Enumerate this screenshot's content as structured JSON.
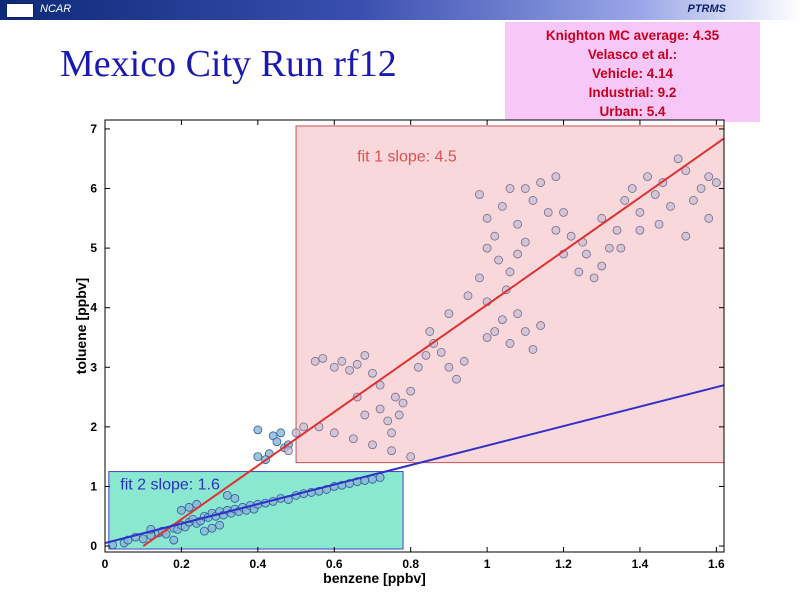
{
  "header": {
    "left": "NCAR",
    "right": "PTRMS"
  },
  "slide_title": "Mexico City Run rf12",
  "info_box": {
    "lines": [
      "Knighton MC average: 4.35",
      "Velasco et al.:",
      "Vehicle: 4.14",
      "Industrial: 9.2",
      "Urban: 5.4"
    ]
  },
  "chart_data": {
    "type": "scatter",
    "xlabel": "benzene [ppbv]",
    "ylabel": "toluene [ppbv]",
    "xlim": [
      0,
      1.62
    ],
    "ylim": [
      -0.1,
      7.15
    ],
    "x_ticks": [
      0,
      0.2,
      0.4,
      0.6,
      0.8,
      1,
      1.2,
      1.4,
      1.6
    ],
    "x_tick_labels": [
      "0",
      "0.2",
      "0.4",
      "0.6",
      "0.8",
      "1",
      "1.2",
      "1.4",
      "1.6"
    ],
    "y_ticks": [
      0,
      1,
      2,
      3,
      4,
      5,
      6,
      7
    ],
    "y_tick_labels": [
      "0",
      "1",
      "2",
      "3",
      "4",
      "5",
      "6",
      "7"
    ],
    "grid": false,
    "regions": [
      {
        "label": "fit 1 slope: 4.5",
        "x": [
          0.5,
          1.62
        ],
        "y": [
          1.4,
          7.05
        ],
        "color": "#f9d4d8",
        "edge": "#c04040",
        "text_color": "#e05050"
      },
      {
        "label": "fit 2 slope: 1.6",
        "x": [
          0.01,
          0.78
        ],
        "y": [
          -0.05,
          1.25
        ],
        "color": "#7fe6cc",
        "edge": "#3030c0",
        "text_color": "#3030c0"
      }
    ],
    "fit_lines": [
      {
        "name": "fit 1",
        "slope": 4.5,
        "x": [
          0.1,
          1.62
        ],
        "y": [
          0.0,
          6.84
        ],
        "color": "#e03030"
      },
      {
        "name": "fit 2",
        "slope": 1.6,
        "x": [
          0.0,
          1.62
        ],
        "y": [
          0.05,
          2.7
        ],
        "color": "#3030c8"
      }
    ],
    "point_groups": [
      {
        "name": "low cluster",
        "color": "#8ab4d8",
        "edge": "#2a5c94",
        "points": [
          [
            0.02,
            0.02
          ],
          [
            0.05,
            0.05
          ],
          [
            0.06,
            0.1
          ],
          [
            0.08,
            0.15
          ],
          [
            0.1,
            0.12
          ],
          [
            0.12,
            0.18
          ],
          [
            0.14,
            0.22
          ],
          [
            0.15,
            0.25
          ],
          [
            0.16,
            0.2
          ],
          [
            0.18,
            0.3
          ],
          [
            0.19,
            0.28
          ],
          [
            0.2,
            0.35
          ],
          [
            0.21,
            0.32
          ],
          [
            0.22,
            0.4
          ],
          [
            0.23,
            0.45
          ],
          [
            0.24,
            0.38
          ],
          [
            0.25,
            0.42
          ],
          [
            0.26,
            0.5
          ],
          [
            0.27,
            0.48
          ],
          [
            0.28,
            0.55
          ],
          [
            0.29,
            0.5
          ],
          [
            0.3,
            0.58
          ],
          [
            0.31,
            0.52
          ],
          [
            0.32,
            0.6
          ],
          [
            0.33,
            0.55
          ],
          [
            0.34,
            0.62
          ],
          [
            0.35,
            0.58
          ],
          [
            0.36,
            0.65
          ],
          [
            0.37,
            0.6
          ],
          [
            0.38,
            0.68
          ],
          [
            0.39,
            0.62
          ],
          [
            0.4,
            0.7
          ],
          [
            0.42,
            0.72
          ],
          [
            0.44,
            0.75
          ],
          [
            0.46,
            0.8
          ],
          [
            0.48,
            0.78
          ],
          [
            0.5,
            0.85
          ],
          [
            0.52,
            0.88
          ],
          [
            0.54,
            0.9
          ],
          [
            0.56,
            0.92
          ],
          [
            0.58,
            0.95
          ],
          [
            0.6,
            1.0
          ],
          [
            0.62,
            1.02
          ],
          [
            0.64,
            1.05
          ],
          [
            0.66,
            1.08
          ],
          [
            0.68,
            1.1
          ],
          [
            0.7,
            1.12
          ],
          [
            0.72,
            1.15
          ],
          [
            0.2,
            0.6
          ],
          [
            0.22,
            0.65
          ],
          [
            0.24,
            0.7
          ],
          [
            0.26,
            0.25
          ],
          [
            0.28,
            0.3
          ],
          [
            0.3,
            0.35
          ],
          [
            0.32,
            0.85
          ],
          [
            0.34,
            0.8
          ],
          [
            0.18,
            0.1
          ],
          [
            0.12,
            0.28
          ],
          [
            0.4,
            1.95
          ],
          [
            0.44,
            1.85
          ],
          [
            0.43,
            1.55
          ],
          [
            0.4,
            1.5
          ],
          [
            0.42,
            1.45
          ],
          [
            0.46,
            1.9
          ],
          [
            0.47,
            1.65
          ],
          [
            0.48,
            1.7
          ],
          [
            0.45,
            1.75
          ]
        ]
      },
      {
        "name": "high cluster",
        "color": "#c8c0d4",
        "edge": "#7a6a8c",
        "points": [
          [
            0.48,
            1.6
          ],
          [
            0.5,
            1.9
          ],
          [
            0.52,
            2.0
          ],
          [
            0.55,
            3.1
          ],
          [
            0.57,
            3.15
          ],
          [
            0.6,
            3.0
          ],
          [
            0.62,
            3.1
          ],
          [
            0.64,
            2.95
          ],
          [
            0.66,
            3.05
          ],
          [
            0.68,
            3.2
          ],
          [
            0.7,
            2.9
          ],
          [
            0.72,
            2.3
          ],
          [
            0.74,
            2.1
          ],
          [
            0.75,
            1.9
          ],
          [
            0.77,
            2.2
          ],
          [
            0.78,
            2.4
          ],
          [
            0.8,
            2.6
          ],
          [
            0.82,
            3.0
          ],
          [
            0.84,
            3.2
          ],
          [
            0.86,
            3.4
          ],
          [
            0.88,
            3.25
          ],
          [
            0.9,
            3.0
          ],
          [
            0.92,
            2.8
          ],
          [
            0.94,
            3.1
          ],
          [
            0.56,
            2.0
          ],
          [
            0.6,
            1.9
          ],
          [
            0.65,
            1.8
          ],
          [
            0.7,
            1.7
          ],
          [
            0.75,
            1.6
          ],
          [
            0.8,
            1.5
          ],
          [
            0.85,
            3.6
          ],
          [
            0.9,
            3.9
          ],
          [
            0.95,
            4.2
          ],
          [
            0.98,
            5.9
          ],
          [
            1.0,
            5.5
          ],
          [
            1.02,
            5.2
          ],
          [
            1.04,
            5.7
          ],
          [
            1.06,
            6.0
          ],
          [
            1.08,
            5.4
          ],
          [
            1.1,
            5.1
          ],
          [
            1.12,
            5.8
          ],
          [
            1.14,
            6.1
          ],
          [
            1.16,
            5.6
          ],
          [
            1.18,
            5.3
          ],
          [
            1.2,
            4.9
          ],
          [
            1.22,
            5.2
          ],
          [
            1.24,
            4.6
          ],
          [
            1.26,
            4.9
          ],
          [
            1.28,
            4.5
          ],
          [
            1.3,
            5.5
          ],
          [
            1.32,
            5.0
          ],
          [
            1.34,
            5.3
          ],
          [
            1.36,
            5.8
          ],
          [
            1.38,
            6.0
          ],
          [
            1.4,
            5.6
          ],
          [
            1.42,
            6.2
          ],
          [
            1.44,
            5.9
          ],
          [
            1.46,
            6.1
          ],
          [
            1.48,
            5.7
          ],
          [
            1.5,
            6.5
          ],
          [
            1.52,
            6.3
          ],
          [
            1.54,
            5.8
          ],
          [
            1.56,
            6.0
          ],
          [
            1.58,
            6.2
          ],
          [
            1.6,
            6.1
          ],
          [
            1.0,
            3.5
          ],
          [
            1.02,
            3.6
          ],
          [
            1.04,
            3.8
          ],
          [
            1.06,
            3.4
          ],
          [
            1.08,
            3.9
          ],
          [
            1.1,
            3.6
          ],
          [
            1.12,
            3.3
          ],
          [
            1.14,
            3.7
          ],
          [
            1.05,
            4.3
          ],
          [
            1.0,
            4.1
          ],
          [
            0.98,
            4.5
          ],
          [
            1.2,
            5.6
          ],
          [
            1.25,
            5.1
          ],
          [
            1.18,
            6.2
          ],
          [
            1.1,
            6.0
          ],
          [
            1.3,
            4.7
          ],
          [
            1.35,
            5.0
          ],
          [
            1.4,
            5.3
          ],
          [
            1.45,
            5.4
          ],
          [
            1.52,
            5.2
          ],
          [
            1.58,
            5.5
          ],
          [
            1.0,
            5.0
          ],
          [
            1.03,
            4.8
          ],
          [
            1.06,
            4.6
          ],
          [
            1.08,
            4.9
          ],
          [
            0.66,
            2.5
          ],
          [
            0.68,
            2.2
          ],
          [
            0.72,
            2.7
          ],
          [
            0.76,
            2.5
          ]
        ]
      }
    ]
  }
}
